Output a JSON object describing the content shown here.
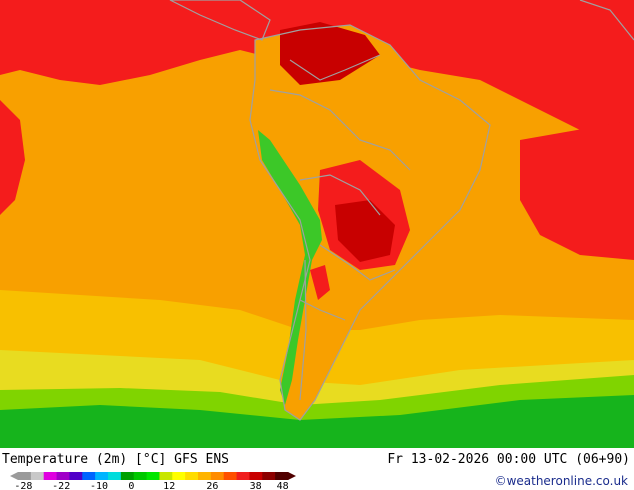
{
  "map": {
    "title": "Temperature (2m) [°C] GFS ENS",
    "valid_time": "Fr 13-02-2026 00:00 UTC (06+90)",
    "credit": "©weatheronline.co.uk",
    "colors": {
      "sea_warm": "#f8a000",
      "hot": "#f41c1c",
      "very_hot": "#c80000",
      "extreme": "#8c0000",
      "mild": "#f8c000",
      "cool": "#e8dc20",
      "cold_green": "#16b41c",
      "cold_lime": "#80d400",
      "border": "#a0a0a0"
    }
  },
  "legend": {
    "ticks": [
      "-28",
      "-22",
      "-10",
      "0",
      "12",
      "26",
      "38",
      "48"
    ],
    "colors": [
      "#9a9a9a",
      "#c8c8c8",
      "#e000e0",
      "#a000c8",
      "#5000c8",
      "#0064ff",
      "#00b4ff",
      "#00dcdc",
      "#00a000",
      "#00c800",
      "#00e600",
      "#c8e600",
      "#ffff00",
      "#ffdc00",
      "#ffb400",
      "#ff8c00",
      "#ff5000",
      "#f01e1e",
      "#c80000",
      "#8c0000",
      "#500000"
    ]
  }
}
